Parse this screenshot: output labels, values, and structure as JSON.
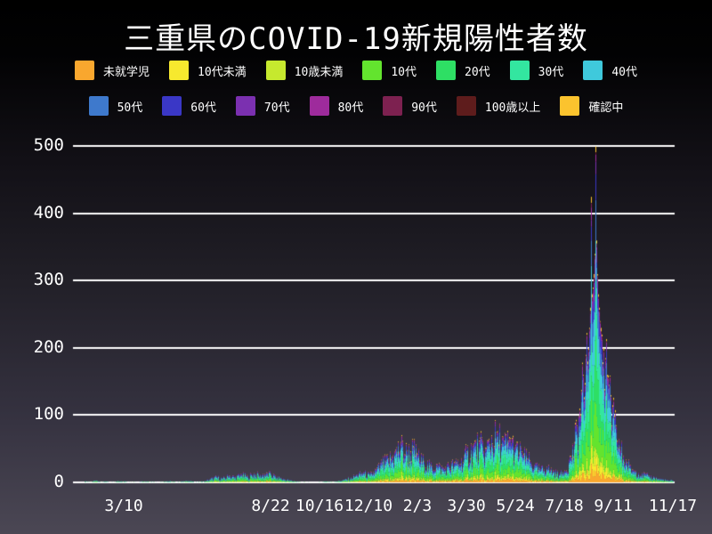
{
  "title": "三重県のCOVID-19新規陽性者数",
  "legend": {
    "rows": [
      [
        "未就学児",
        "10代未満",
        "10歳未満",
        "10代",
        "20代",
        "30代",
        "40代"
      ],
      [
        "50代",
        "60代",
        "70代",
        "80代",
        "90代",
        "100歳以上",
        "確認中"
      ]
    ]
  },
  "chart_data": {
    "type": "bar",
    "subtype": "stacked-daily-bars",
    "title": "三重県のCOVID-19新規陽性者数",
    "xlabel": "",
    "ylabel": "",
    "ylim": [
      0,
      520
    ],
    "grid": "horizontal-white",
    "legend_position": "top-two-rows",
    "y_ticks": [
      0,
      100,
      200,
      300,
      400,
      500
    ],
    "x_ticks": [
      {
        "label": "3/10",
        "day": 44
      },
      {
        "label": "8/22",
        "day": 209
      },
      {
        "label": "10/16",
        "day": 264
      },
      {
        "label": "12/10",
        "day": 319
      },
      {
        "label": "2/3",
        "day": 374
      },
      {
        "label": "3/30",
        "day": 429
      },
      {
        "label": "5/24",
        "day": 484
      },
      {
        "label": "7/18",
        "day": 539
      },
      {
        "label": "9/11",
        "day": 594
      },
      {
        "label": "11/17",
        "day": 661
      }
    ],
    "days": 661,
    "groups": [
      {
        "name": "未就学児",
        "color": "#F9A72E",
        "fraction": 0.055
      },
      {
        "name": "10代未満",
        "color": "#F7E92E",
        "fraction": 0.045
      },
      {
        "name": "10歳未満",
        "color": "#C6E92E",
        "fraction": 0.04
      },
      {
        "name": "10代",
        "color": "#63E42E",
        "fraction": 0.155
      },
      {
        "name": "20代",
        "color": "#2EDF64",
        "fraction": 0.17
      },
      {
        "name": "30代",
        "color": "#33E6A0",
        "fraction": 0.15
      },
      {
        "name": "40代",
        "color": "#3FC9DC",
        "fraction": 0.135
      },
      {
        "name": "50代",
        "color": "#3E79CC",
        "fraction": 0.1
      },
      {
        "name": "60代",
        "color": "#3A37C6",
        "fraction": 0.055
      },
      {
        "name": "70代",
        "color": "#7B30B0",
        "fraction": 0.04
      },
      {
        "name": "80代",
        "color": "#9E2B9C",
        "fraction": 0.025
      },
      {
        "name": "90代",
        "color": "#7D2150",
        "fraction": 0.012
      },
      {
        "name": "100歳以上",
        "color": "#5E1C1C",
        "fraction": 0.003
      },
      {
        "name": "確認中",
        "color": "#FBC32E",
        "fraction": 0.015
      }
    ],
    "daily_totals": [
      [
        0,
        2
      ],
      [
        6,
        1
      ],
      [
        12,
        3
      ],
      [
        18,
        1
      ],
      [
        24,
        2
      ],
      [
        30,
        1
      ],
      [
        36,
        2
      ],
      [
        44,
        2
      ],
      [
        50,
        1
      ],
      [
        57,
        1
      ],
      [
        64,
        2
      ],
      [
        71,
        2
      ],
      [
        78,
        1
      ],
      [
        85,
        1
      ],
      [
        92,
        2
      ],
      [
        99,
        2
      ],
      [
        106,
        1
      ],
      [
        113,
        3
      ],
      [
        120,
        2
      ],
      [
        127,
        1
      ],
      [
        134,
        2
      ],
      [
        141,
        6
      ],
      [
        148,
        9
      ],
      [
        155,
        7
      ],
      [
        162,
        11
      ],
      [
        169,
        9
      ],
      [
        176,
        13
      ],
      [
        183,
        10
      ],
      [
        190,
        14
      ],
      [
        197,
        12
      ],
      [
        204,
        15
      ],
      [
        209,
        13
      ],
      [
        216,
        9
      ],
      [
        223,
        6
      ],
      [
        230,
        4
      ],
      [
        237,
        2
      ],
      [
        244,
        1
      ],
      [
        251,
        1
      ],
      [
        258,
        0
      ],
      [
        264,
        1
      ],
      [
        271,
        2
      ],
      [
        278,
        1
      ],
      [
        285,
        3
      ],
      [
        292,
        5
      ],
      [
        299,
        8
      ],
      [
        306,
        12
      ],
      [
        313,
        16
      ],
      [
        320,
        12
      ],
      [
        327,
        20
      ],
      [
        334,
        30
      ],
      [
        341,
        36
      ],
      [
        348,
        46
      ],
      [
        355,
        60
      ],
      [
        362,
        48
      ],
      [
        369,
        54
      ],
      [
        374,
        42
      ],
      [
        381,
        32
      ],
      [
        388,
        26
      ],
      [
        395,
        28
      ],
      [
        402,
        22
      ],
      [
        409,
        26
      ],
      [
        416,
        31
      ],
      [
        423,
        36
      ],
      [
        429,
        46
      ],
      [
        436,
        56
      ],
      [
        443,
        62
      ],
      [
        450,
        52
      ],
      [
        457,
        70
      ],
      [
        464,
        76
      ],
      [
        471,
        62
      ],
      [
        478,
        66
      ],
      [
        484,
        56
      ],
      [
        491,
        46
      ],
      [
        498,
        36
      ],
      [
        505,
        26
      ],
      [
        512,
        20
      ],
      [
        519,
        24
      ],
      [
        526,
        18
      ],
      [
        533,
        13
      ],
      [
        539,
        18
      ],
      [
        546,
        40
      ],
      [
        550,
        60
      ],
      [
        553,
        85
      ],
      [
        556,
        110
      ],
      [
        560,
        160
      ],
      [
        563,
        190
      ],
      [
        565,
        180
      ],
      [
        566,
        200
      ],
      [
        567,
        230
      ],
      [
        568,
        260
      ],
      [
        569,
        425
      ],
      [
        570,
        280
      ],
      [
        571,
        290
      ],
      [
        572,
        310
      ],
      [
        573,
        340
      ],
      [
        574,
        500
      ],
      [
        575,
        360
      ],
      [
        576,
        310
      ],
      [
        577,
        280
      ],
      [
        578,
        260
      ],
      [
        579,
        240
      ],
      [
        580,
        230
      ],
      [
        581,
        220
      ],
      [
        583,
        200
      ],
      [
        585,
        185
      ],
      [
        587,
        160
      ],
      [
        589,
        145
      ],
      [
        591,
        130
      ],
      [
        593,
        115
      ],
      [
        595,
        100
      ],
      [
        597,
        85
      ],
      [
        600,
        65
      ],
      [
        605,
        40
      ],
      [
        612,
        26
      ],
      [
        619,
        18
      ],
      [
        626,
        14
      ],
      [
        633,
        11
      ],
      [
        640,
        8
      ],
      [
        647,
        6
      ],
      [
        654,
        4
      ],
      [
        661,
        3
      ]
    ]
  }
}
